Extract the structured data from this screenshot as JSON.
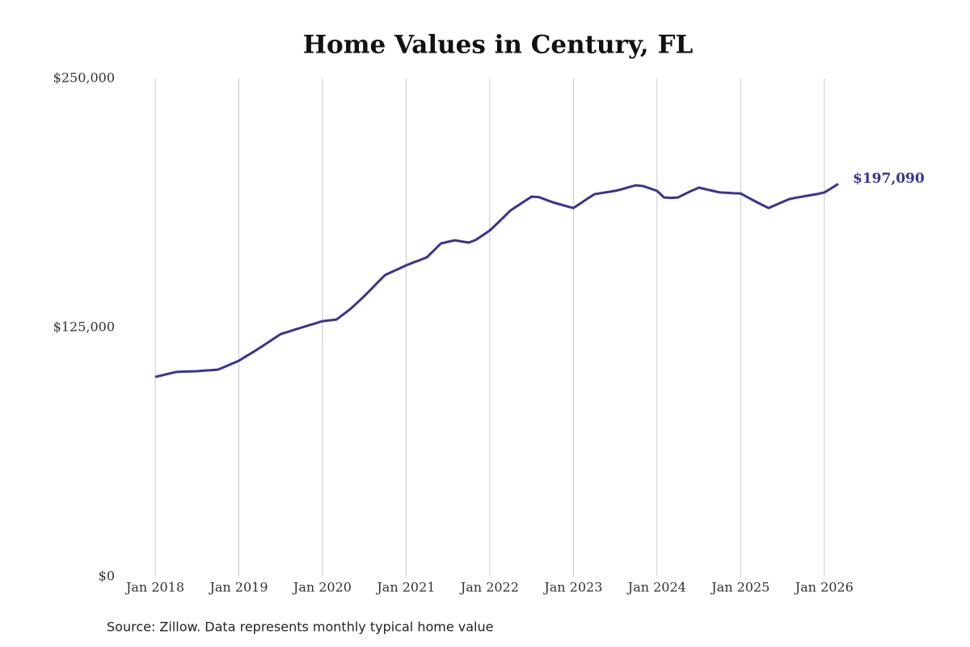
{
  "chart_data": {
    "type": "line",
    "title": "Home Values in Century, FL",
    "source": "Source: Zillow. Data represents monthly typical home value",
    "x": [
      "2018-01",
      "2018-02",
      "2018-03",
      "2018-04",
      "2018-05",
      "2018-06",
      "2018-07",
      "2018-08",
      "2018-09",
      "2018-10",
      "2018-11",
      "2018-12",
      "2019-01",
      "2019-02",
      "2019-03",
      "2019-04",
      "2019-05",
      "2019-06",
      "2019-07",
      "2019-08",
      "2019-09",
      "2019-10",
      "2019-11",
      "2019-12",
      "2020-01",
      "2020-02",
      "2020-03",
      "2020-04",
      "2020-05",
      "2020-06",
      "2020-07",
      "2020-08",
      "2020-09",
      "2020-10",
      "2020-11",
      "2020-12",
      "2021-01",
      "2021-02",
      "2021-03",
      "2021-04",
      "2021-05",
      "2021-06",
      "2021-07",
      "2021-08",
      "2021-09",
      "2021-10",
      "2021-11",
      "2021-12",
      "2022-01",
      "2022-02",
      "2022-03",
      "2022-04",
      "2022-05",
      "2022-06",
      "2022-07",
      "2022-08",
      "2022-09",
      "2022-10",
      "2022-11",
      "2022-12",
      "2023-01",
      "2023-02",
      "2023-03",
      "2023-04",
      "2023-05",
      "2023-06",
      "2023-07",
      "2023-08",
      "2023-09",
      "2023-10",
      "2023-11",
      "2023-12",
      "2024-01",
      "2024-02",
      "2024-03",
      "2024-04",
      "2024-05",
      "2024-06",
      "2024-07",
      "2024-08",
      "2024-09",
      "2024-10",
      "2024-11",
      "2024-12",
      "2025-01",
      "2025-02",
      "2025-03",
      "2025-04",
      "2025-05",
      "2025-06",
      "2025-07",
      "2025-08",
      "2025-09",
      "2025-10",
      "2025-11",
      "2025-12",
      "2026-01",
      "2026-02",
      "2026-03"
    ],
    "series": [
      {
        "name": "Typical home value",
        "color": "#3b3391",
        "values": [
          100200,
          101000,
          101900,
          102700,
          102900,
          103000,
          103100,
          103400,
          103600,
          103900,
          105300,
          106800,
          108300,
          110500,
          112600,
          114800,
          117100,
          119400,
          121700,
          122800,
          123900,
          125000,
          126100,
          127100,
          128200,
          128600,
          129000,
          131600,
          134300,
          137500,
          140800,
          144300,
          147900,
          151400,
          153000,
          154600,
          156200,
          157600,
          158900,
          160300,
          163700,
          167200,
          168000,
          168800,
          168200,
          167600,
          169000,
          171300,
          173700,
          177000,
          180400,
          183800,
          186100,
          188400,
          190700,
          190500,
          189200,
          187900,
          186900,
          185900,
          185000,
          187300,
          189600,
          191900,
          192500,
          193000,
          193600,
          194500,
          195500,
          196400,
          196000,
          194800,
          193600,
          190300,
          190000,
          190300,
          192000,
          193700,
          195200,
          194400,
          193600,
          192800,
          192600,
          192400,
          192300,
          190400,
          188500,
          186700,
          185000,
          186500,
          188000,
          189500,
          190200,
          190800,
          191400,
          192000,
          192800,
          194900,
          197090
        ],
        "value_labels": [
          null,
          null,
          null,
          null,
          null,
          null,
          null,
          null,
          null,
          null,
          null,
          null,
          null,
          null,
          null,
          null,
          null,
          null,
          null,
          null,
          null,
          null,
          null,
          null,
          null,
          null,
          null,
          null,
          null,
          null,
          null,
          null,
          null,
          null,
          null,
          null,
          null,
          null,
          null,
          null,
          null,
          null,
          null,
          null,
          null,
          null,
          null,
          null,
          null,
          null,
          null,
          null,
          null,
          null,
          null,
          null,
          null,
          null,
          null,
          null,
          null,
          null,
          null,
          null,
          null,
          null,
          null,
          null,
          null,
          null,
          null,
          null,
          null,
          null,
          null,
          null,
          null,
          null,
          null,
          null,
          null,
          null,
          null,
          null,
          null,
          null,
          null,
          null,
          null,
          null,
          null,
          null,
          null,
          null,
          null,
          null,
          null,
          null,
          "$197,090"
        ]
      }
    ],
    "xlim": [
      "2018-01",
      "2026-03"
    ],
    "xticks": [
      {
        "value": "2018-01",
        "label": "Jan 2018"
      },
      {
        "value": "2019-01",
        "label": "Jan 2019"
      },
      {
        "value": "2020-01",
        "label": "Jan 2020"
      },
      {
        "value": "2021-01",
        "label": "Jan 2021"
      },
      {
        "value": "2022-01",
        "label": "Jan 2022"
      },
      {
        "value": "2023-01",
        "label": "Jan 2023"
      },
      {
        "value": "2024-01",
        "label": "Jan 2024"
      },
      {
        "value": "2025-01",
        "label": "Jan 2025"
      },
      {
        "value": "2026-01",
        "label": "Jan 2026"
      }
    ],
    "ylim": [
      0,
      250000
    ],
    "yticks": [
      {
        "value": 0,
        "label": "$0"
      },
      {
        "value": 125000,
        "label": "$125,000"
      },
      {
        "value": 250000,
        "label": "$250,000"
      }
    ],
    "grid": "x"
  }
}
